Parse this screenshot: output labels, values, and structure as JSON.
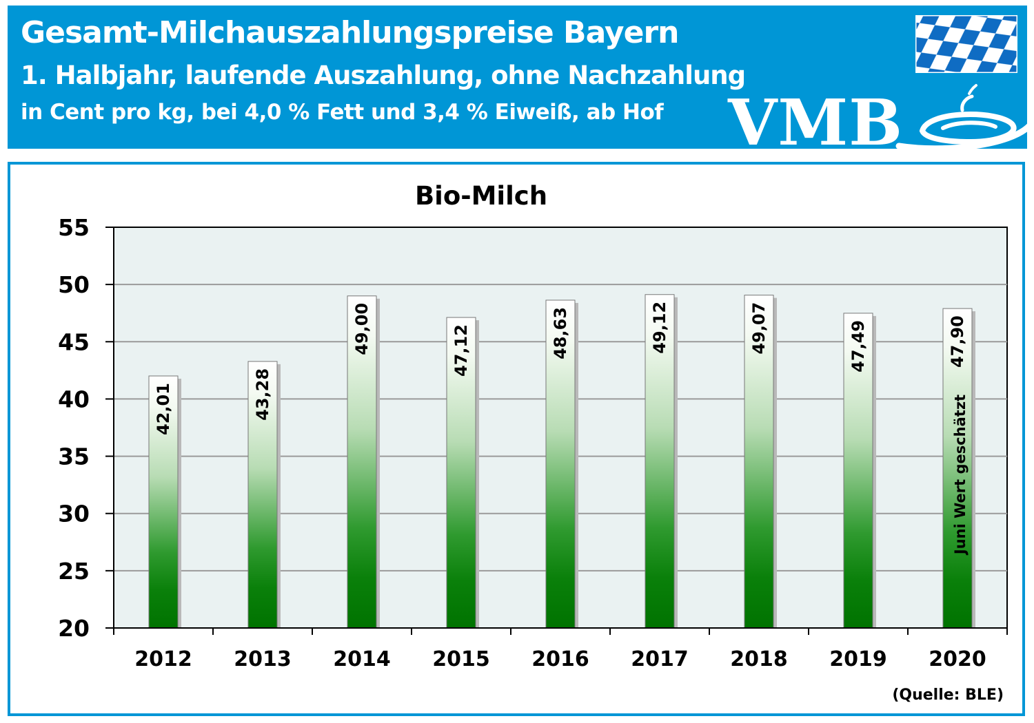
{
  "header": {
    "title": "Gesamt-Milchauszahlungspreise  Bayern",
    "subtitle": "1. Halbjahr, laufende Auszahlung, ohne Nachzahlung",
    "units": "in Cent pro kg, bei 4,0 % Fett und 3,4 % Eiweiß, ab Hof",
    "logo_text": "VMB",
    "logo_icon": "vmb-swirl-logo-icon",
    "flag_icon": "bavarian-flag-icon",
    "background_color": "#0096d6"
  },
  "chart_data": {
    "type": "bar",
    "title": "Bio-Milch",
    "xlabel": "",
    "ylabel": "",
    "ylim": [
      20,
      55
    ],
    "yticks": [
      "20",
      "25",
      "30",
      "35",
      "40",
      "45",
      "50",
      "55"
    ],
    "grid": true,
    "categories": [
      "2012",
      "2013",
      "2014",
      "2015",
      "2016",
      "2017",
      "2018",
      "2019",
      "2020"
    ],
    "values": [
      42.01,
      43.28,
      49.0,
      47.12,
      48.63,
      49.12,
      49.07,
      47.49,
      47.9
    ],
    "value_labels": [
      "42,01",
      "43,28",
      "49,00",
      "47,12",
      "48,63",
      "49,12",
      "49,07",
      "47,49",
      "47,90"
    ],
    "annotation": "Juni Wert geschätzt",
    "annotation_category": "2020",
    "source": "(Quelle: BLE)",
    "bar_gradient": [
      "#ffffff",
      "#007a00"
    ],
    "plot_background": "#eaf2f2"
  }
}
